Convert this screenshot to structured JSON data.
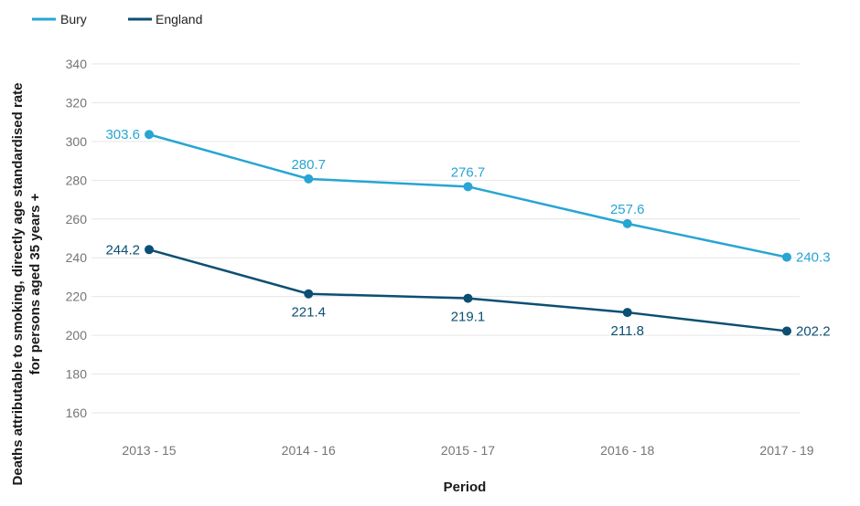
{
  "chart_data": {
    "type": "line",
    "categories": [
      "2013 - 15",
      "2014 - 16",
      "2015 - 17",
      "2016 - 18",
      "2017 - 19"
    ],
    "series": [
      {
        "name": "Bury",
        "color": "#27a5d3",
        "values": [
          303.6,
          280.7,
          276.7,
          257.6,
          240.3
        ],
        "data_labels": [
          "303.6",
          "280.7",
          "276.7",
          "257.6",
          "240.3"
        ]
      },
      {
        "name": "England",
        "color": "#0b4f73",
        "values": [
          244.2,
          221.4,
          219.1,
          211.8,
          202.2
        ],
        "data_labels": [
          "244.2",
          "221.4",
          "219.1",
          "211.8",
          "202.2"
        ]
      }
    ],
    "xlabel": "Period",
    "ylabel_lines": [
      "Deaths attributable to smoking, directly age standardised rate",
      "for persons aged 35 years +"
    ],
    "ylim": [
      160,
      340
    ],
    "yticks": [
      160,
      180,
      200,
      220,
      240,
      260,
      280,
      300,
      320,
      340
    ],
    "ytick_labels": [
      "160",
      "180",
      "200",
      "220",
      "240",
      "260",
      "280",
      "300",
      "320",
      "340"
    ],
    "grid": true,
    "legend_position": "top-left"
  }
}
